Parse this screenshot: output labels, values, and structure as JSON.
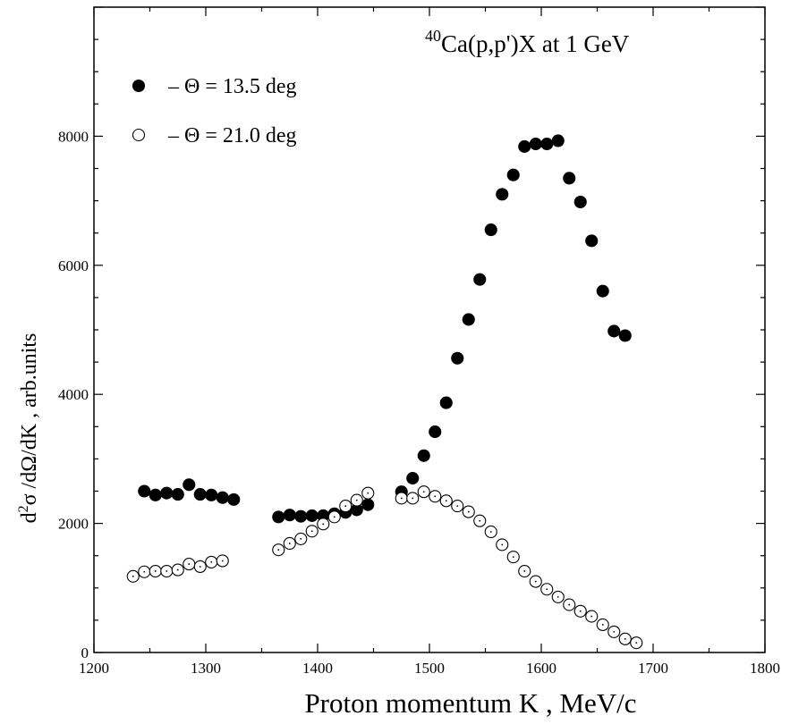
{
  "chart_data": {
    "type": "scatter",
    "title_prefix": "40",
    "title": "Ca(p,p')X at 1 GeV",
    "xlabel": "Proton momentum K , MeV/c",
    "ylabel_prefix": "d",
    "ylabel_sup": "2",
    "ylabel_rest": "σ /dΩ/dK , arb.units",
    "xlim": [
      1200,
      1800
    ],
    "ylim": [
      0,
      10000
    ],
    "x_ticks": [
      1200,
      1300,
      1400,
      1500,
      1600,
      1700,
      1800
    ],
    "y_ticks": [
      0,
      2000,
      4000,
      6000,
      8000
    ],
    "legend_position": "top-left",
    "series": [
      {
        "name": "– Θ  = 13.5 deg",
        "marker": "filled-circle",
        "color": "#000000",
        "points": [
          [
            1245,
            2500
          ],
          [
            1255,
            2440
          ],
          [
            1265,
            2470
          ],
          [
            1275,
            2450
          ],
          [
            1285,
            2600
          ],
          [
            1295,
            2450
          ],
          [
            1305,
            2440
          ],
          [
            1315,
            2400
          ],
          [
            1325,
            2370
          ],
          [
            1365,
            2100
          ],
          [
            1375,
            2130
          ],
          [
            1385,
            2110
          ],
          [
            1395,
            2120
          ],
          [
            1405,
            2120
          ],
          [
            1415,
            2150
          ],
          [
            1425,
            2170
          ],
          [
            1435,
            2210
          ],
          [
            1445,
            2290
          ],
          [
            1475,
            2490
          ],
          [
            1485,
            2700
          ],
          [
            1495,
            3050
          ],
          [
            1505,
            3420
          ],
          [
            1515,
            3870
          ],
          [
            1525,
            4560
          ],
          [
            1535,
            5160
          ],
          [
            1545,
            5780
          ],
          [
            1555,
            6550
          ],
          [
            1565,
            7100
          ],
          [
            1575,
            7400
          ],
          [
            1585,
            7840
          ],
          [
            1595,
            7880
          ],
          [
            1605,
            7880
          ],
          [
            1615,
            7930
          ],
          [
            1625,
            7350
          ],
          [
            1635,
            6980
          ],
          [
            1645,
            6380
          ],
          [
            1655,
            5600
          ],
          [
            1665,
            4980
          ],
          [
            1675,
            4910
          ]
        ]
      },
      {
        "name": "– Θ  = 21.0 deg",
        "marker": "open-circle",
        "color": "#000000",
        "points": [
          [
            1235,
            1180
          ],
          [
            1245,
            1250
          ],
          [
            1255,
            1260
          ],
          [
            1265,
            1260
          ],
          [
            1275,
            1280
          ],
          [
            1285,
            1370
          ],
          [
            1295,
            1330
          ],
          [
            1305,
            1400
          ],
          [
            1315,
            1420
          ],
          [
            1365,
            1590
          ],
          [
            1375,
            1690
          ],
          [
            1385,
            1760
          ],
          [
            1395,
            1880
          ],
          [
            1405,
            1990
          ],
          [
            1415,
            2100
          ],
          [
            1425,
            2270
          ],
          [
            1435,
            2360
          ],
          [
            1445,
            2470
          ],
          [
            1475,
            2390
          ],
          [
            1485,
            2390
          ],
          [
            1495,
            2490
          ],
          [
            1505,
            2420
          ],
          [
            1515,
            2350
          ],
          [
            1525,
            2270
          ],
          [
            1535,
            2180
          ],
          [
            1545,
            2040
          ],
          [
            1555,
            1870
          ],
          [
            1565,
            1670
          ],
          [
            1575,
            1480
          ],
          [
            1585,
            1260
          ],
          [
            1595,
            1100
          ],
          [
            1605,
            980
          ],
          [
            1615,
            860
          ],
          [
            1625,
            740
          ],
          [
            1635,
            640
          ],
          [
            1645,
            560
          ],
          [
            1655,
            430
          ],
          [
            1665,
            320
          ],
          [
            1675,
            210
          ],
          [
            1685,
            150
          ]
        ]
      }
    ]
  }
}
